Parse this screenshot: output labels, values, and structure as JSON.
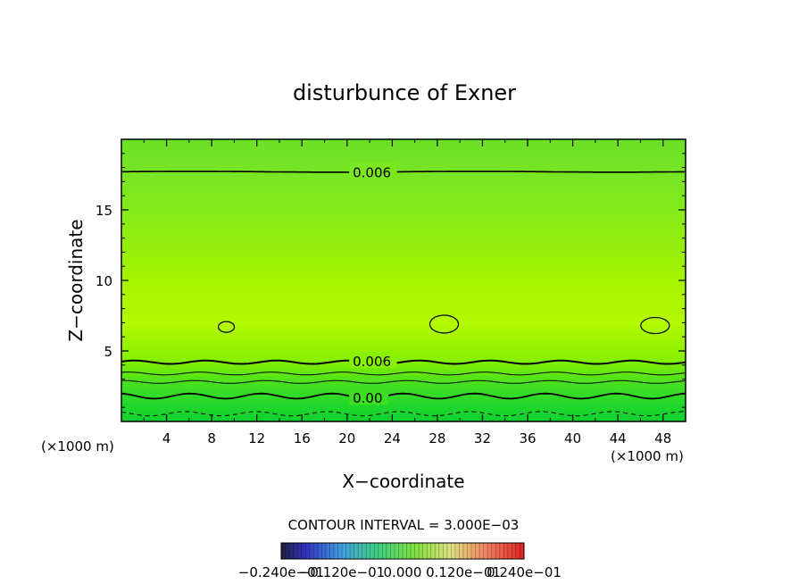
{
  "chart_data": {
    "type": "contour",
    "title": "disturbunce of Exner",
    "xlabel": "X−coordinate",
    "ylabel": "Z−coordinate",
    "x_unit": "(×1000 m)",
    "y_unit": "(×1000 m)",
    "xlim": [
      0,
      50
    ],
    "ylim": [
      0,
      20
    ],
    "x_ticks": [
      4,
      8,
      12,
      16,
      20,
      24,
      28,
      32,
      36,
      40,
      44,
      48
    ],
    "x_tick_labels": [
      "4",
      "8",
      "12",
      "16",
      "20",
      "24",
      "28",
      "32",
      "36",
      "40",
      "44",
      "48"
    ],
    "y_ticks": [
      5,
      10,
      15
    ],
    "y_tick_labels": [
      "5",
      "10",
      "15"
    ],
    "contour_labels": [
      {
        "text": "0.006",
        "x": 20.5,
        "z": 17.7
      },
      {
        "text": "0.006",
        "x": 20.5,
        "z": 4.3
      },
      {
        "text": "0.00",
        "x": 20.5,
        "z": 1.7
      }
    ],
    "contour_interval_text": "CONTOUR INTERVAL = 3.000E−03",
    "colorbar_labels": [
      "−0.240e−01",
      "−0.120e−01",
      "0.000",
      "0.120e−01",
      "0.240e−01"
    ],
    "colorbar_range": [
      -0.024,
      0.024
    ],
    "colors": {
      "low": "#00cc33",
      "mid": "#66ee00",
      "high": "#bbff00"
    }
  }
}
